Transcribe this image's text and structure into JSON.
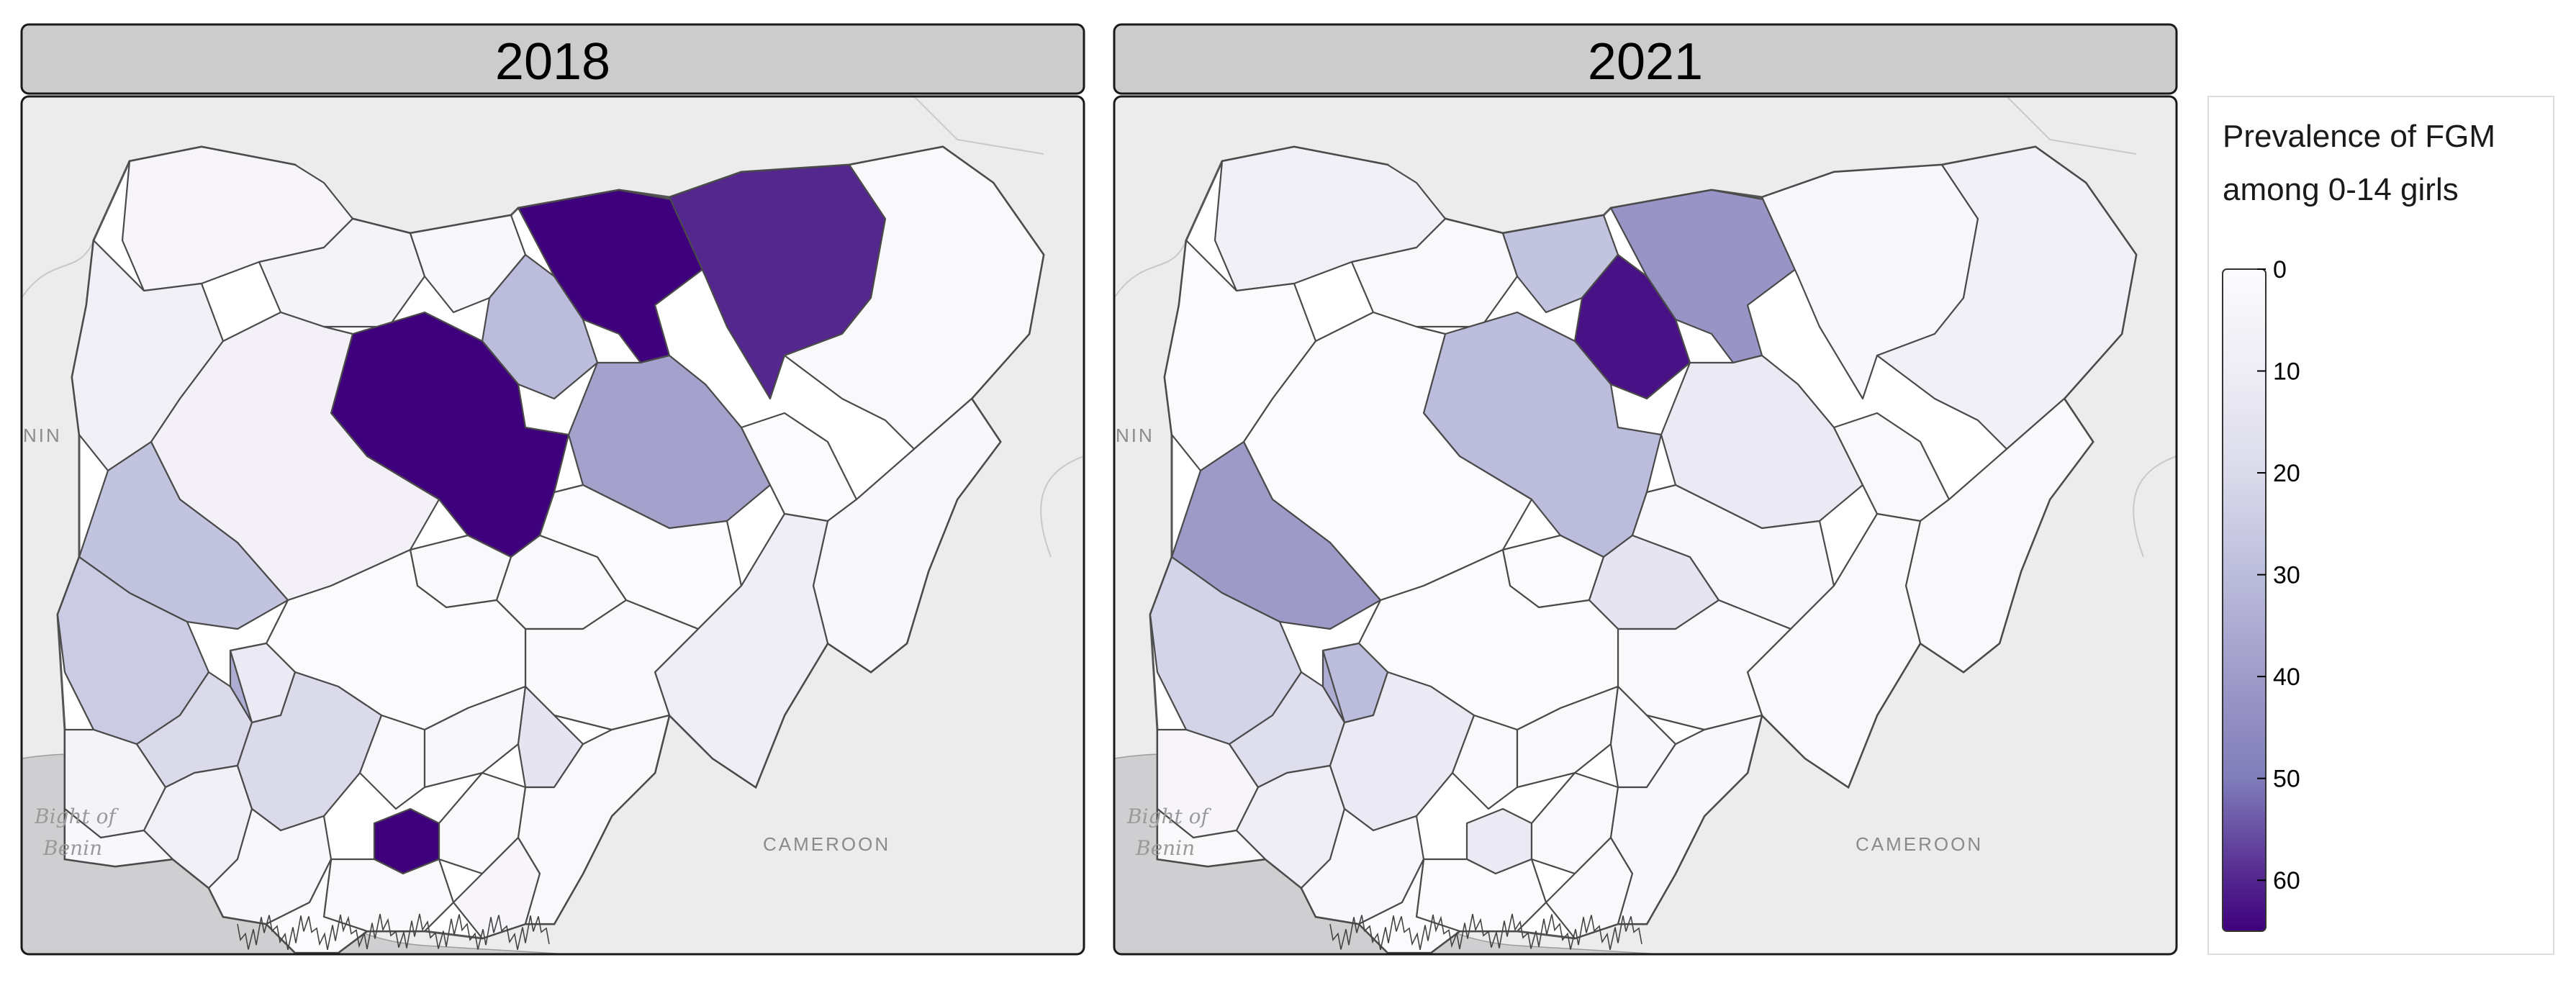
{
  "panels": [
    {
      "year": "2018",
      "states": {
        "sokoto": 4,
        "zamfara": 6,
        "katsina": 3,
        "kano": 30,
        "jigawa": 65,
        "yobe": 58,
        "borno": 2,
        "kebbi": 8,
        "niger": 7,
        "kaduna": 65,
        "bauchi": 38,
        "gombe": 1,
        "adamawa": 3,
        "kwara": 28,
        "kogi": 1,
        "abuja": 2,
        "nasarawa": 2,
        "plateau": 1,
        "benue": 2,
        "taraba": 10,
        "oyo": 25,
        "ogun": 6,
        "lagos": 3,
        "osun": 20,
        "ekiti": 12,
        "ondo": 8,
        "edo": 20,
        "anambra": 2,
        "enugu": 3,
        "ebonyi": 15,
        "imo": 65,
        "abia": 2,
        "delta": 3,
        "bayelsa": 1,
        "rivers": 2,
        "akwa_ibom": 4,
        "cross_river": 2,
        "kwara_south": 35
      }
    },
    {
      "year": "2021",
      "states": {
        "sokoto": 8,
        "zamfara": 2,
        "katsina": 28,
        "kano": 62,
        "jigawa": 42,
        "yobe": 3,
        "borno": 8,
        "kebbi": 1,
        "niger": 1,
        "kaduna": 30,
        "bauchi": 12,
        "gombe": 2,
        "adamawa": 2,
        "kwara": 40,
        "kogi": 1,
        "abuja": 1,
        "nasarawa": 15,
        "plateau": 3,
        "benue": 2,
        "taraba": 2,
        "oyo": 22,
        "ogun": 4,
        "lagos": 2,
        "osun": 18,
        "ekiti": 30,
        "ondo": 10,
        "edo": 12,
        "anambra": 2,
        "enugu": 2,
        "ebonyi": 3,
        "imo": 12,
        "abia": 2,
        "delta": 3,
        "bayelsa": 1,
        "rivers": 1,
        "akwa_ibom": 2,
        "cross_river": 3,
        "kwara_south": 35
      }
    }
  ],
  "legend": {
    "title_line1": "Prevalence of FGM",
    "title_line2": "among 0-14 girls",
    "ticks": [
      "0",
      "10",
      "20",
      "30",
      "40",
      "50",
      "60"
    ],
    "min": 0,
    "max": 65,
    "color_low": "#fcfbfd",
    "color_high": "#3f007d"
  },
  "basemap": {
    "water_label_line1": "Bight of",
    "water_label_line2": "Benin",
    "cameroon_label": "CAMEROON",
    "benin_label": "NIN",
    "land_color": "#ececec",
    "water_color": "#cfcfd1"
  }
}
